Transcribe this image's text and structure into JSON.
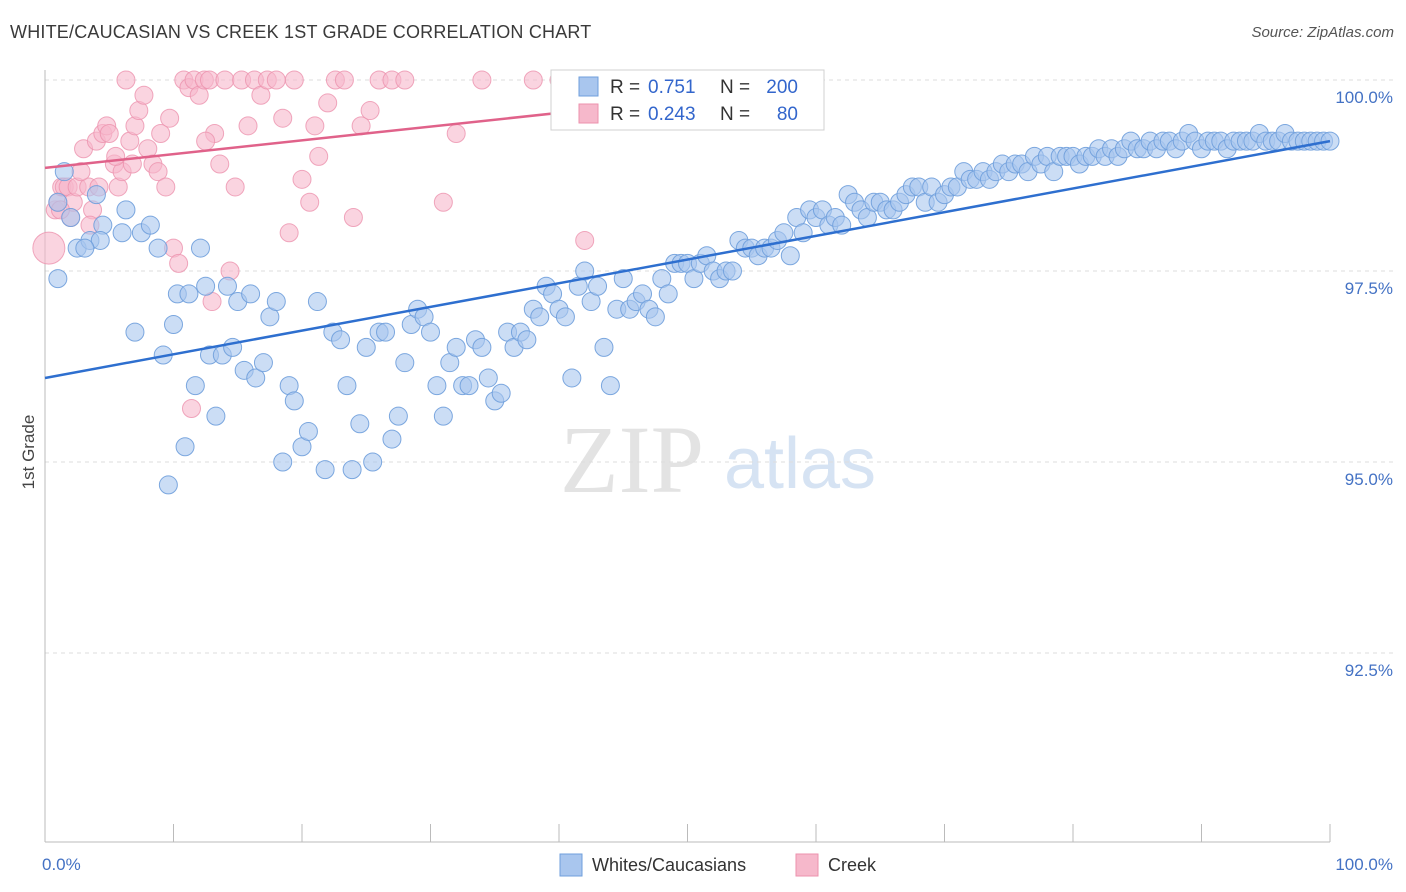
{
  "title": "WHITE/CAUCASIAN VS CREEK 1ST GRADE CORRELATION CHART",
  "source": "Source: ZipAtlas.com",
  "watermark": {
    "zip": "ZIP",
    "atlas": "atlas"
  },
  "colors": {
    "blue_fill": "#a9c6ee",
    "blue_stroke": "#6f9fdc",
    "blue_line": "#2e6fcf",
    "pink_fill": "#f6b8cb",
    "pink_stroke": "#ec92ae",
    "pink_line": "#e0628a",
    "tick_text": "#4472c4",
    "grid": "#dddddd"
  },
  "legend": {
    "rows": [
      {
        "r_label": "R =",
        "r_value": "0.751",
        "n_label": "N =",
        "n_value": "200"
      },
      {
        "r_label": "R =",
        "r_value": "0.243",
        "n_label": "N =",
        "n_value": "80"
      }
    ]
  },
  "bottom_legend": [
    "Whites/Caucasians",
    "Creek"
  ],
  "chart_data": {
    "type": "scatter",
    "title": "WHITE/CAUCASIAN VS CREEK 1ST GRADE CORRELATION CHART",
    "xlabel": "",
    "ylabel": "1st Grade",
    "xlim": [
      0,
      100
    ],
    "ylim": [
      90,
      100.2
    ],
    "x_tick_labels": [
      "0.0%",
      "100.0%"
    ],
    "y_ticks": [
      92.5,
      95.0,
      97.5,
      100.0
    ],
    "y_tick_labels": [
      "92.5%",
      "95.0%",
      "97.5%",
      "100.0%"
    ],
    "grid": true,
    "legend_position": "top-center",
    "series": [
      {
        "name": "Whites/Caucasians",
        "R": 0.751,
        "N": 200,
        "trend": {
          "x": [
            0,
            100
          ],
          "y": [
            96.1,
            99.2
          ]
        },
        "points": [
          [
            1,
            98.4
          ],
          [
            1.5,
            98.8
          ],
          [
            2,
            98.2
          ],
          [
            2.5,
            97.8
          ],
          [
            3.5,
            97.9
          ],
          [
            4,
            98.5
          ],
          [
            4.5,
            98.1
          ],
          [
            6,
            98
          ],
          [
            6.3,
            98.3
          ],
          [
            7,
            96.7
          ],
          [
            7.5,
            98
          ],
          [
            8.2,
            98.1
          ],
          [
            8.8,
            97.8
          ],
          [
            1,
            97.4
          ],
          [
            9.2,
            96.4
          ],
          [
            9.6,
            94.7
          ],
          [
            10,
            96.8
          ],
          [
            10.3,
            97.2
          ],
          [
            10.9,
            95.2
          ],
          [
            11.2,
            97.2
          ],
          [
            11.7,
            96
          ],
          [
            12.1,
            97.8
          ],
          [
            12.5,
            97.3
          ],
          [
            12.8,
            96.4
          ],
          [
            13.3,
            95.6
          ],
          [
            13.8,
            96.4
          ],
          [
            14.2,
            97.3
          ],
          [
            14.6,
            96.5
          ],
          [
            15,
            97.1
          ],
          [
            15.5,
            96.2
          ],
          [
            16,
            97.2
          ],
          [
            16.4,
            96.1
          ],
          [
            17,
            96.3
          ],
          [
            17.5,
            96.9
          ],
          [
            18,
            97.1
          ],
          [
            18.5,
            95
          ],
          [
            19,
            96
          ],
          [
            19.4,
            95.8
          ],
          [
            20,
            95.2
          ],
          [
            20.5,
            95.4
          ],
          [
            21.2,
            97.1
          ],
          [
            21.8,
            94.9
          ],
          [
            22.4,
            96.7
          ],
          [
            23,
            96.6
          ],
          [
            23.5,
            96
          ],
          [
            23.9,
            94.9
          ],
          [
            24.5,
            95.5
          ],
          [
            25,
            96.5
          ],
          [
            25.5,
            95
          ],
          [
            26,
            96.7
          ],
          [
            26.5,
            96.7
          ],
          [
            27,
            95.3
          ],
          [
            27.5,
            95.6
          ],
          [
            28,
            96.3
          ],
          [
            28.5,
            96.8
          ],
          [
            29,
            97
          ],
          [
            29.5,
            96.9
          ],
          [
            30,
            96.7
          ],
          [
            30.5,
            96
          ],
          [
            31,
            95.6
          ],
          [
            31.5,
            96.3
          ],
          [
            32,
            96.5
          ],
          [
            32.5,
            96
          ],
          [
            33,
            96
          ],
          [
            33.5,
            96.6
          ],
          [
            34,
            96.5
          ],
          [
            34.5,
            96.1
          ],
          [
            35,
            95.8
          ],
          [
            35.5,
            95.9
          ],
          [
            36,
            96.7
          ],
          [
            36.5,
            96.5
          ],
          [
            37,
            96.7
          ],
          [
            37.5,
            96.6
          ],
          [
            38,
            97
          ],
          [
            38.5,
            96.9
          ],
          [
            39,
            97.3
          ],
          [
            39.5,
            97.2
          ],
          [
            40,
            97
          ],
          [
            40.5,
            96.9
          ],
          [
            41,
            96.1
          ],
          [
            41.5,
            97.3
          ],
          [
            42,
            97.5
          ],
          [
            42.5,
            97.1
          ],
          [
            43,
            97.3
          ],
          [
            43.5,
            96.5
          ],
          [
            44,
            96
          ],
          [
            44.5,
            97
          ],
          [
            45,
            97.4
          ],
          [
            45.5,
            97
          ],
          [
            46,
            97.1
          ],
          [
            46.5,
            97.2
          ],
          [
            47,
            97
          ],
          [
            47.5,
            96.9
          ],
          [
            48,
            97.4
          ],
          [
            48.5,
            97.2
          ],
          [
            49,
            97.6
          ],
          [
            49.5,
            97.6
          ],
          [
            50,
            97.6
          ],
          [
            50.5,
            97.4
          ],
          [
            51,
            97.6
          ],
          [
            51.5,
            97.7
          ],
          [
            52,
            97.5
          ],
          [
            52.5,
            97.4
          ],
          [
            53,
            97.5
          ],
          [
            53.5,
            97.5
          ],
          [
            54,
            97.9
          ],
          [
            54.5,
            97.8
          ],
          [
            55,
            97.8
          ],
          [
            55.5,
            97.7
          ],
          [
            56,
            97.8
          ],
          [
            56.5,
            97.8
          ],
          [
            57,
            97.9
          ],
          [
            57.5,
            98
          ],
          [
            58,
            97.7
          ],
          [
            58.5,
            98.2
          ],
          [
            59,
            98
          ],
          [
            59.5,
            98.3
          ],
          [
            60,
            98.2
          ],
          [
            60.5,
            98.3
          ],
          [
            61,
            98.1
          ],
          [
            61.5,
            98.2
          ],
          [
            62,
            98.1
          ],
          [
            62.5,
            98.5
          ],
          [
            63,
            98.4
          ],
          [
            63.5,
            98.3
          ],
          [
            64,
            98.2
          ],
          [
            64.5,
            98.4
          ],
          [
            65,
            98.4
          ],
          [
            65.5,
            98.3
          ],
          [
            66,
            98.3
          ],
          [
            66.5,
            98.4
          ],
          [
            67,
            98.5
          ],
          [
            67.5,
            98.6
          ],
          [
            68,
            98.6
          ],
          [
            68.5,
            98.4
          ],
          [
            69,
            98.6
          ],
          [
            69.5,
            98.4
          ],
          [
            70,
            98.5
          ],
          [
            70.5,
            98.6
          ],
          [
            71,
            98.6
          ],
          [
            71.5,
            98.8
          ],
          [
            72,
            98.7
          ],
          [
            72.5,
            98.7
          ],
          [
            73,
            98.8
          ],
          [
            73.5,
            98.7
          ],
          [
            74,
            98.8
          ],
          [
            74.5,
            98.9
          ],
          [
            75,
            98.8
          ],
          [
            75.5,
            98.9
          ],
          [
            76,
            98.9
          ],
          [
            76.5,
            98.8
          ],
          [
            77,
            99
          ],
          [
            77.5,
            98.9
          ],
          [
            78,
            99
          ],
          [
            78.5,
            98.8
          ],
          [
            79,
            99
          ],
          [
            79.5,
            99
          ],
          [
            80,
            99
          ],
          [
            80.5,
            98.9
          ],
          [
            81,
            99
          ],
          [
            81.5,
            99
          ],
          [
            82,
            99.1
          ],
          [
            82.5,
            99
          ],
          [
            83,
            99.1
          ],
          [
            83.5,
            99
          ],
          [
            84,
            99.1
          ],
          [
            84.5,
            99.2
          ],
          [
            85,
            99.1
          ],
          [
            85.5,
            99.1
          ],
          [
            86,
            99.2
          ],
          [
            86.5,
            99.1
          ],
          [
            87,
            99.2
          ],
          [
            87.5,
            99.2
          ],
          [
            88,
            99.1
          ],
          [
            88.5,
            99.2
          ],
          [
            89,
            99.3
          ],
          [
            89.5,
            99.2
          ],
          [
            90,
            99.1
          ],
          [
            90.5,
            99.2
          ],
          [
            91,
            99.2
          ],
          [
            91.5,
            99.2
          ],
          [
            92,
            99.1
          ],
          [
            92.5,
            99.2
          ],
          [
            93,
            99.2
          ],
          [
            93.5,
            99.2
          ],
          [
            94,
            99.2
          ],
          [
            94.5,
            99.3
          ],
          [
            95,
            99.2
          ],
          [
            95.5,
            99.2
          ],
          [
            96,
            99.2
          ],
          [
            96.5,
            99.3
          ],
          [
            97,
            99.2
          ],
          [
            97.5,
            99.2
          ],
          [
            98,
            99.2
          ],
          [
            98.5,
            99.2
          ],
          [
            99,
            99.2
          ],
          [
            99.5,
            99.2
          ],
          [
            100,
            99.2
          ],
          [
            4.3,
            97.9
          ],
          [
            3.1,
            97.8
          ]
        ]
      },
      {
        "name": "Creek",
        "R": 0.243,
        "N": 80,
        "trend": {
          "x": [
            0,
            50
          ],
          "y": [
            98.85,
            99.75
          ]
        },
        "points": [
          [
            0.3,
            97.8
          ],
          [
            0.8,
            98.3
          ],
          [
            1,
            98.4
          ],
          [
            1.3,
            98.6
          ],
          [
            1.5,
            98.6
          ],
          [
            1.8,
            98.6
          ],
          [
            2,
            98.2
          ],
          [
            2.2,
            98.4
          ],
          [
            2.5,
            98.6
          ],
          [
            3,
            99.1
          ],
          [
            3.4,
            98.6
          ],
          [
            3.7,
            98.3
          ],
          [
            4,
            99.2
          ],
          [
            4.2,
            98.6
          ],
          [
            4.5,
            99.3
          ],
          [
            4.8,
            99.4
          ],
          [
            5,
            99.3
          ],
          [
            5.4,
            98.9
          ],
          [
            5.7,
            98.6
          ],
          [
            6,
            98.8
          ],
          [
            6.3,
            100
          ],
          [
            6.6,
            99.2
          ],
          [
            7,
            99.4
          ],
          [
            7.3,
            99.6
          ],
          [
            7.7,
            99.8
          ],
          [
            8,
            99.1
          ],
          [
            8.4,
            98.9
          ],
          [
            8.8,
            98.8
          ],
          [
            9,
            99.3
          ],
          [
            9.4,
            98.6
          ],
          [
            9.7,
            99.5
          ],
          [
            10,
            97.8
          ],
          [
            10.4,
            97.6
          ],
          [
            10.8,
            100
          ],
          [
            11.2,
            99.9
          ],
          [
            11.6,
            100
          ],
          [
            12,
            99.8
          ],
          [
            12.4,
            100
          ],
          [
            12.8,
            100
          ],
          [
            13.2,
            99.3
          ],
          [
            13.6,
            98.9
          ],
          [
            14,
            100
          ],
          [
            14.4,
            97.5
          ],
          [
            14.8,
            98.6
          ],
          [
            15.3,
            100
          ],
          [
            15.8,
            99.4
          ],
          [
            16.3,
            100
          ],
          [
            16.8,
            99.8
          ],
          [
            17.3,
            100
          ],
          [
            18,
            100
          ],
          [
            18.5,
            99.5
          ],
          [
            19,
            98
          ],
          [
            19.4,
            100
          ],
          [
            20,
            98.7
          ],
          [
            20.6,
            98.4
          ],
          [
            21.3,
            99
          ],
          [
            22,
            99.7
          ],
          [
            22.6,
            100
          ],
          [
            23.3,
            100
          ],
          [
            24,
            98.2
          ],
          [
            24.6,
            99.4
          ],
          [
            25.3,
            99.6
          ],
          [
            26,
            100
          ],
          [
            27,
            100
          ],
          [
            28,
            100
          ],
          [
            32,
            99.3
          ],
          [
            34,
            100
          ],
          [
            38,
            100
          ],
          [
            40,
            100
          ],
          [
            3.5,
            98.1
          ],
          [
            5.5,
            99
          ],
          [
            6.8,
            98.9
          ],
          [
            12.5,
            99.2
          ],
          [
            13,
            97.1
          ],
          [
            11.4,
            95.7
          ],
          [
            1.2,
            98.3
          ],
          [
            2.8,
            98.8
          ],
          [
            21,
            99.4
          ],
          [
            31,
            98.4
          ],
          [
            42,
            97.9
          ]
        ]
      }
    ]
  }
}
